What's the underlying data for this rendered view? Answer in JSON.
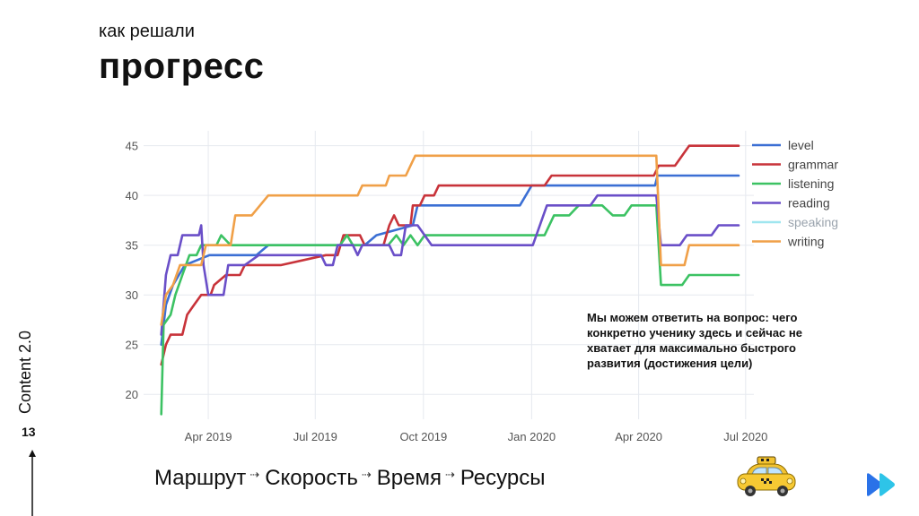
{
  "slide": {
    "subtitle": "как решали",
    "title": "прогресс",
    "side_label": "Content 2.0",
    "page_number": "13",
    "annotation": "Мы можем ответить на вопрос: чего конкретно ученику здесь и сейчас не хватает для максимально быстрого развития (достижения цели)",
    "flow_steps": [
      "Маршрут",
      "Скорость",
      "Время",
      "Ресурсы"
    ],
    "flow_separator": "⇢",
    "icons": [
      "taxi-icon",
      "fast-forward-icon",
      "arrow-up-icon"
    ]
  },
  "chart_data": {
    "type": "line",
    "title": "",
    "xlabel": "",
    "ylabel": "",
    "x_ticks": [
      "Apr 2019",
      "Jul 2019",
      "Oct 2019",
      "Jan 2020",
      "Apr 2020",
      "Jul 2020"
    ],
    "y_ticks": [
      20,
      25,
      30,
      35,
      40,
      45
    ],
    "xlim": [
      "2019-02-05",
      "2020-07-08"
    ],
    "ylim": [
      17.5,
      46.5
    ],
    "grid": true,
    "legend_position": "top-right",
    "series": [
      {
        "name": "level",
        "color": "#3b6fd4",
        "points": [
          [
            "2019-02-20",
            25
          ],
          [
            "2019-02-24",
            29
          ],
          [
            "2019-03-02",
            31
          ],
          [
            "2019-03-12",
            33
          ],
          [
            "2019-04-02",
            34
          ],
          [
            "2019-05-12",
            34
          ],
          [
            "2019-05-22",
            35
          ],
          [
            "2019-08-12",
            35
          ],
          [
            "2019-08-22",
            36
          ],
          [
            "2019-09-22",
            37
          ],
          [
            "2019-09-26",
            39
          ],
          [
            "2019-12-22",
            39
          ],
          [
            "2020-01-01",
            41
          ],
          [
            "2020-04-15",
            41
          ],
          [
            "2020-04-17",
            42
          ],
          [
            "2020-06-25",
            42
          ]
        ]
      },
      {
        "name": "grammar",
        "color": "#c8333a",
        "points": [
          [
            "2019-02-20",
            23
          ],
          [
            "2019-02-24",
            25
          ],
          [
            "2019-02-28",
            26
          ],
          [
            "2019-03-10",
            26
          ],
          [
            "2019-03-14",
            28
          ],
          [
            "2019-03-20",
            29
          ],
          [
            "2019-03-26",
            30
          ],
          [
            "2019-04-03",
            30
          ],
          [
            "2019-04-06",
            31
          ],
          [
            "2019-04-16",
            32
          ],
          [
            "2019-04-28",
            32
          ],
          [
            "2019-05-02",
            33
          ],
          [
            "2019-06-02",
            33
          ],
          [
            "2019-07-10",
            34
          ],
          [
            "2019-07-20",
            34
          ],
          [
            "2019-07-25",
            36
          ],
          [
            "2019-08-08",
            36
          ],
          [
            "2019-08-12",
            35
          ],
          [
            "2019-08-28",
            35
          ],
          [
            "2019-09-02",
            37
          ],
          [
            "2019-09-06",
            38
          ],
          [
            "2019-09-10",
            37
          ],
          [
            "2019-09-20",
            37
          ],
          [
            "2019-09-22",
            39
          ],
          [
            "2019-09-28",
            39
          ],
          [
            "2019-10-02",
            40
          ],
          [
            "2019-10-10",
            40
          ],
          [
            "2019-10-14",
            41
          ],
          [
            "2020-01-12",
            41
          ],
          [
            "2020-01-18",
            42
          ],
          [
            "2020-04-14",
            42
          ],
          [
            "2020-04-18",
            43
          ],
          [
            "2020-05-02",
            43
          ],
          [
            "2020-05-14",
            45
          ],
          [
            "2020-06-25",
            45
          ]
        ]
      },
      {
        "name": "listening",
        "color": "#3cc263",
        "points": [
          [
            "2019-02-20",
            18
          ],
          [
            "2019-02-22",
            27
          ],
          [
            "2019-02-28",
            28
          ],
          [
            "2019-03-04",
            30
          ],
          [
            "2019-03-10",
            32
          ],
          [
            "2019-03-16",
            34
          ],
          [
            "2019-03-22",
            34
          ],
          [
            "2019-03-26",
            35
          ],
          [
            "2019-04-08",
            35
          ],
          [
            "2019-04-12",
            36
          ],
          [
            "2019-04-20",
            35
          ],
          [
            "2019-07-22",
            35
          ],
          [
            "2019-07-28",
            36
          ],
          [
            "2019-08-02",
            35
          ],
          [
            "2019-09-01",
            35
          ],
          [
            "2019-09-08",
            36
          ],
          [
            "2019-09-14",
            35
          ],
          [
            "2019-09-20",
            36
          ],
          [
            "2019-09-26",
            35
          ],
          [
            "2019-10-02",
            36
          ],
          [
            "2020-01-12",
            36
          ],
          [
            "2020-01-20",
            38
          ],
          [
            "2020-02-02",
            38
          ],
          [
            "2020-02-10",
            39
          ],
          [
            "2020-03-01",
            39
          ],
          [
            "2020-03-10",
            38
          ],
          [
            "2020-03-20",
            38
          ],
          [
            "2020-03-26",
            39
          ],
          [
            "2020-04-16",
            39
          ],
          [
            "2020-04-20",
            31
          ],
          [
            "2020-05-08",
            31
          ],
          [
            "2020-05-14",
            32
          ],
          [
            "2020-06-25",
            32
          ]
        ]
      },
      {
        "name": "reading",
        "color": "#6a4fc8",
        "points": [
          [
            "2019-02-20",
            26
          ],
          [
            "2019-02-24",
            32
          ],
          [
            "2019-02-28",
            34
          ],
          [
            "2019-03-06",
            34
          ],
          [
            "2019-03-10",
            36
          ],
          [
            "2019-03-24",
            36
          ],
          [
            "2019-03-26",
            37
          ],
          [
            "2019-03-28",
            33
          ],
          [
            "2019-04-01",
            30
          ],
          [
            "2019-04-14",
            30
          ],
          [
            "2019-04-18",
            33
          ],
          [
            "2019-05-02",
            33
          ],
          [
            "2019-05-14",
            34
          ],
          [
            "2019-07-06",
            34
          ],
          [
            "2019-07-10",
            33
          ],
          [
            "2019-07-16",
            33
          ],
          [
            "2019-07-20",
            35
          ],
          [
            "2019-08-02",
            35
          ],
          [
            "2019-08-06",
            34
          ],
          [
            "2019-08-10",
            35
          ],
          [
            "2019-09-02",
            35
          ],
          [
            "2019-09-06",
            34
          ],
          [
            "2019-09-12",
            34
          ],
          [
            "2019-09-16",
            37
          ],
          [
            "2019-09-26",
            37
          ],
          [
            "2019-10-08",
            35
          ],
          [
            "2020-01-02",
            35
          ],
          [
            "2020-01-14",
            39
          ],
          [
            "2020-02-20",
            39
          ],
          [
            "2020-02-26",
            40
          ],
          [
            "2020-04-16",
            40
          ],
          [
            "2020-04-20",
            35
          ],
          [
            "2020-05-06",
            35
          ],
          [
            "2020-05-12",
            36
          ],
          [
            "2020-06-02",
            36
          ],
          [
            "2020-06-08",
            37
          ],
          [
            "2020-06-25",
            37
          ]
        ]
      },
      {
        "name": "speaking",
        "color": "#9fe6ef",
        "points": []
      },
      {
        "name": "writing",
        "color": "#f0a048",
        "points": [
          [
            "2019-02-20",
            27
          ],
          [
            "2019-02-24",
            30
          ],
          [
            "2019-03-02",
            31
          ],
          [
            "2019-03-08",
            33
          ],
          [
            "2019-03-26",
            33
          ],
          [
            "2019-03-30",
            35
          ],
          [
            "2019-04-20",
            35
          ],
          [
            "2019-04-24",
            38
          ],
          [
            "2019-05-08",
            38
          ],
          [
            "2019-05-22",
            40
          ],
          [
            "2019-08-06",
            40
          ],
          [
            "2019-08-10",
            41
          ],
          [
            "2019-08-30",
            41
          ],
          [
            "2019-09-02",
            42
          ],
          [
            "2019-09-16",
            42
          ],
          [
            "2019-09-20",
            43
          ],
          [
            "2019-09-24",
            44
          ],
          [
            "2020-04-16",
            44
          ],
          [
            "2020-04-20",
            33
          ],
          [
            "2020-05-10",
            33
          ],
          [
            "2020-05-14",
            35
          ],
          [
            "2020-06-25",
            35
          ]
        ]
      }
    ]
  }
}
